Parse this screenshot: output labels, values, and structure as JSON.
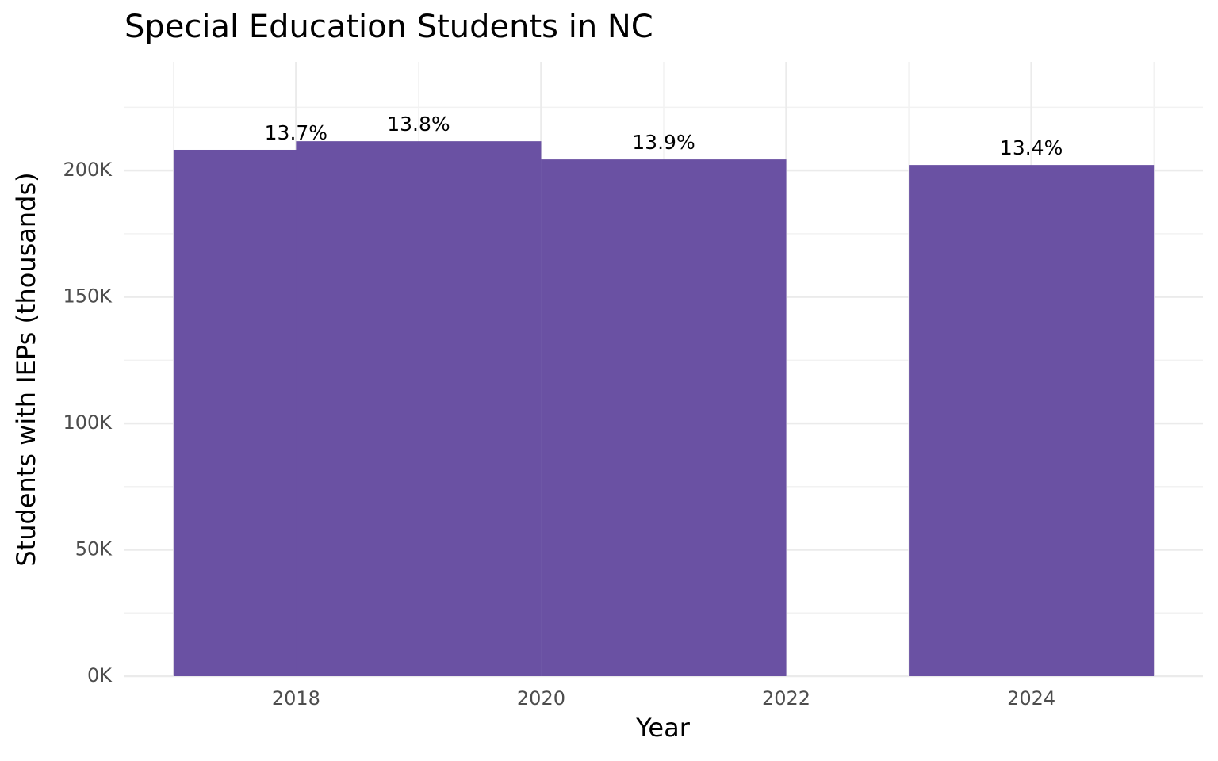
{
  "chart_data": {
    "type": "bar",
    "title": "Special Education Students in NC",
    "x_label": "Year",
    "y_label": "Students with IEPs (thousands)",
    "x": [
      2018,
      2019,
      2021,
      2024
    ],
    "values": [
      208200,
      211600,
      204400,
      202200
    ],
    "annotations": [
      "13.7%",
      "13.8%",
      "13.9%",
      "13.4%"
    ],
    "bar_width": 2,
    "color": "#6a51a3",
    "xlim": [
      2016.6,
      2025.4
    ],
    "xticks": [
      2018,
      2020,
      2022,
      2024
    ],
    "ylim": [
      0,
      243000
    ],
    "yticks": [
      {
        "value": 0,
        "label": "0K"
      },
      {
        "value": 50000,
        "label": "50K"
      },
      {
        "value": 100000,
        "label": "100K"
      },
      {
        "value": 150000,
        "label": "150K"
      },
      {
        "value": 200000,
        "label": "200K"
      }
    ],
    "grid": true
  }
}
